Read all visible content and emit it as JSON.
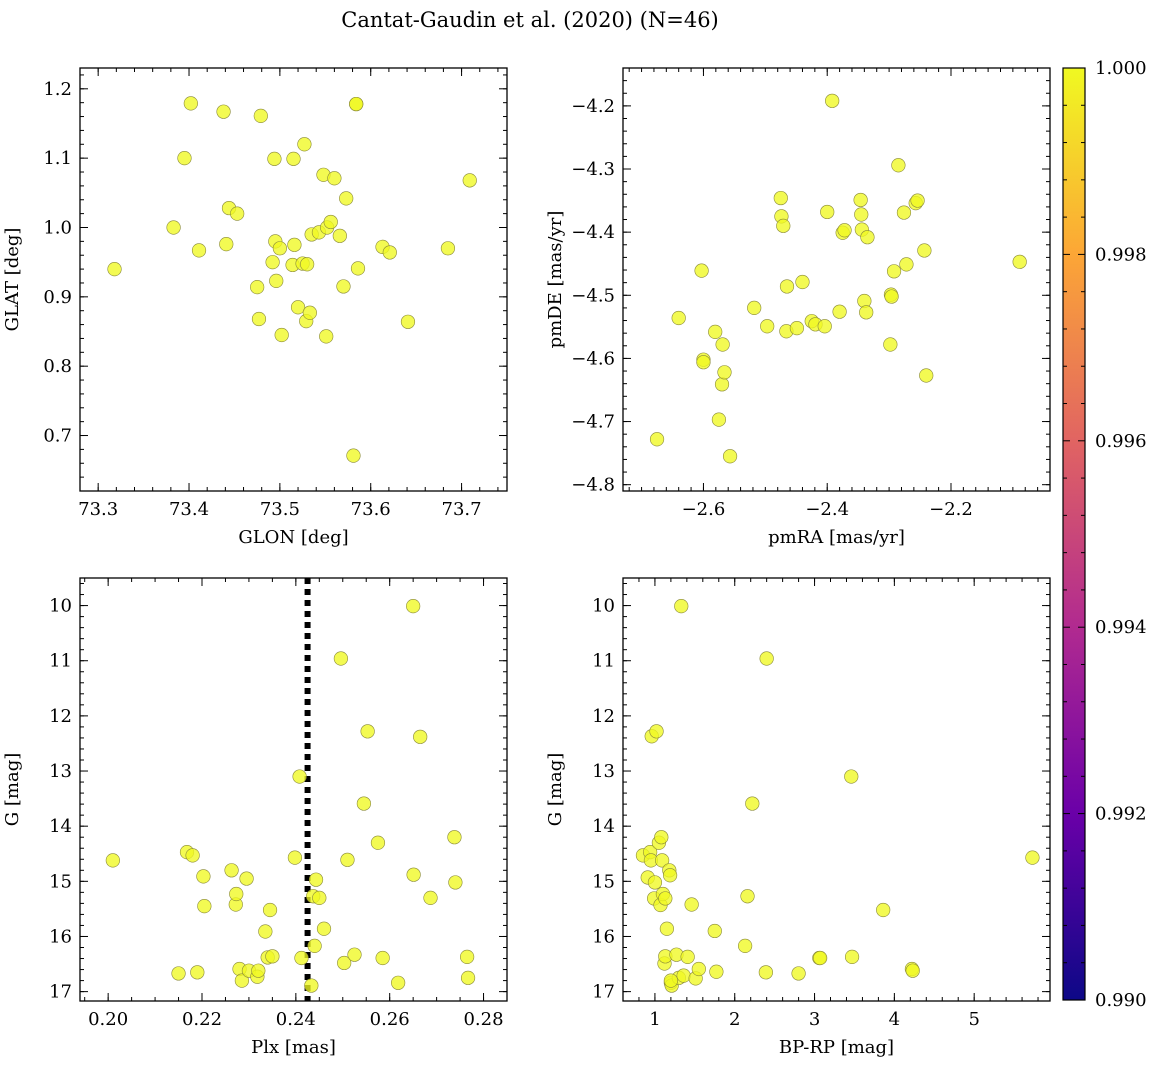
{
  "figure_title": "Cantat-Gaudin et al. (2020) (N=46)",
  "marker_color": "#f0f921",
  "colorbar": {
    "colormap": "plasma",
    "min": 0.99,
    "max": 1.0,
    "ticks": [
      "0.990",
      "0.992",
      "0.994",
      "0.996",
      "0.998",
      "1.000"
    ],
    "stops": [
      "#0d0887",
      "#6a00a8",
      "#b12a90",
      "#e16462",
      "#fca636",
      "#f0f921"
    ]
  },
  "chart_data": [
    {
      "type": "scatter",
      "title": "",
      "xlabel": "GLON [deg]",
      "ylabel": "GLAT [deg]",
      "xlim": [
        73.28,
        73.75
      ],
      "ylim": [
        0.62,
        1.23
      ],
      "y_inverted": false,
      "xticks": [
        73.3,
        73.4,
        73.5,
        73.6,
        73.7
      ],
      "xtick_labels": [
        "73.3",
        "73.4",
        "73.5",
        "73.6",
        "73.7"
      ],
      "yticks": [
        0.7,
        0.8,
        0.9,
        1.0,
        1.1,
        1.2
      ],
      "ytick_labels": [
        "0.7",
        "0.8",
        "0.9",
        "1.0",
        "1.1",
        "1.2"
      ],
      "xminor": 0.02,
      "yminor": 0.02,
      "vline": null,
      "x": [
        73.318,
        73.383,
        73.395,
        73.402,
        73.411,
        73.438,
        73.441,
        73.444,
        73.453,
        73.475,
        73.477,
        73.479,
        73.492,
        73.494,
        73.495,
        73.496,
        73.5,
        73.502,
        73.514,
        73.515,
        73.516,
        73.52,
        73.525,
        73.527,
        73.529,
        73.53,
        73.533,
        73.535,
        73.543,
        73.548,
        73.551,
        73.552,
        73.556,
        73.56,
        73.566,
        73.57,
        73.573,
        73.581,
        73.584,
        73.584,
        73.586,
        73.613,
        73.621,
        73.641,
        73.685,
        73.709
      ],
      "y": [
        0.94,
        1.0,
        1.1,
        1.179,
        0.967,
        1.167,
        0.976,
        1.028,
        1.02,
        0.914,
        0.868,
        1.161,
        0.95,
        1.099,
        0.98,
        0.923,
        0.97,
        0.845,
        0.946,
        1.099,
        0.975,
        0.885,
        0.948,
        1.12,
        0.865,
        0.947,
        0.877,
        0.99,
        0.993,
        1.076,
        0.843,
        1.0,
        1.008,
        1.071,
        0.988,
        0.915,
        1.042,
        0.671,
        1.178,
        1.178,
        0.941,
        0.972,
        0.964,
        0.864,
        0.97,
        1.068
      ]
    },
    {
      "type": "scatter",
      "title": "",
      "xlabel": "pmRA [mas/yr]",
      "ylabel": "pmDE [mas/yr]",
      "xlim": [
        -2.73,
        -2.04
      ],
      "ylim": [
        -4.81,
        -4.14
      ],
      "y_inverted": false,
      "xticks": [
        -2.6,
        -2.4,
        -2.2
      ],
      "xtick_labels": [
        "−2.6",
        "−2.4",
        "−2.2"
      ],
      "yticks": [
        -4.8,
        -4.7,
        -4.6,
        -4.5,
        -4.4,
        -4.3,
        -4.2
      ],
      "ytick_labels": [
        "−4.8",
        "−4.7",
        "−4.6",
        "−4.5",
        "−4.4",
        "−4.3",
        "−4.2"
      ],
      "xminor": 0.02,
      "yminor": 0.02,
      "vline": null,
      "x": [
        -2.675,
        -2.64,
        -2.603,
        -2.6,
        -2.6,
        -2.581,
        -2.575,
        -2.57,
        -2.569,
        -2.566,
        -2.557,
        -2.518,
        -2.497,
        -2.475,
        -2.474,
        -2.471,
        -2.466,
        -2.465,
        -2.449,
        -2.44,
        -2.425,
        -2.419,
        -2.404,
        -2.4,
        -2.392,
        -2.38,
        -2.375,
        -2.372,
        -2.346,
        -2.345,
        -2.344,
        -2.34,
        -2.337,
        -2.335,
        -2.298,
        -2.297,
        -2.296,
        -2.292,
        -2.285,
        -2.276,
        -2.272,
        -2.257,
        -2.254,
        -2.243,
        -2.24,
        -2.089
      ],
      "y": [
        -4.728,
        -4.536,
        -4.461,
        -4.602,
        -4.606,
        -4.558,
        -4.697,
        -4.641,
        -4.578,
        -4.622,
        -4.755,
        -4.52,
        -4.549,
        -4.346,
        -4.375,
        -4.39,
        -4.557,
        -4.486,
        -4.552,
        -4.479,
        -4.541,
        -4.546,
        -4.549,
        -4.368,
        -4.192,
        -4.526,
        -4.401,
        -4.397,
        -4.349,
        -4.372,
        -4.396,
        -4.509,
        -4.527,
        -4.408,
        -4.578,
        -4.499,
        -4.502,
        -4.462,
        -4.294,
        -4.369,
        -4.451,
        -4.354,
        -4.35,
        -4.429,
        -4.627,
        -4.447
      ]
    },
    {
      "type": "scatter",
      "title": "",
      "xlabel": "Plx [mas]",
      "ylabel": "G [mag]",
      "xlim": [
        0.194,
        0.285
      ],
      "ylim": [
        9.5,
        17.17
      ],
      "y_inverted": true,
      "xticks": [
        0.2,
        0.22,
        0.24,
        0.26,
        0.28
      ],
      "xtick_labels": [
        "0.20",
        "0.22",
        "0.24",
        "0.26",
        "0.28"
      ],
      "yticks": [
        10,
        11,
        12,
        13,
        14,
        15,
        16,
        17
      ],
      "ytick_labels": [
        "10",
        "11",
        "12",
        "13",
        "14",
        "15",
        "16",
        "17"
      ],
      "xminor": 0.005,
      "yminor": 0.2,
      "vline": {
        "x": 0.2425,
        "style": "dotted"
      },
      "x": [
        0.201,
        0.215,
        0.2168,
        0.218,
        0.219,
        0.2203,
        0.2205,
        0.2263,
        0.2272,
        0.2273,
        0.228,
        0.2285,
        0.2295,
        0.23,
        0.2318,
        0.232,
        0.2335,
        0.234,
        0.2345,
        0.235,
        0.2398,
        0.2408,
        0.2412,
        0.2433,
        0.2437,
        0.244,
        0.2443,
        0.245,
        0.246,
        0.2496,
        0.2503,
        0.251,
        0.2525,
        0.2545,
        0.2553,
        0.2575,
        0.2585,
        0.2618,
        0.265,
        0.2651,
        0.2665,
        0.2687,
        0.2738,
        0.274,
        0.2765,
        0.2767
      ],
      "y": [
        14.62,
        16.67,
        14.47,
        14.53,
        16.65,
        14.91,
        15.45,
        14.8,
        15.42,
        15.23,
        16.59,
        16.8,
        14.95,
        16.62,
        16.73,
        16.62,
        15.91,
        16.38,
        15.52,
        16.36,
        14.57,
        13.1,
        16.39,
        16.89,
        15.27,
        16.17,
        14.97,
        15.3,
        15.86,
        10.96,
        16.48,
        14.61,
        16.33,
        13.59,
        12.28,
        14.3,
        16.39,
        16.84,
        10.01,
        14.88,
        12.38,
        15.3,
        14.2,
        15.02,
        16.37,
        16.75
      ]
    },
    {
      "type": "scatter",
      "title": "",
      "xlabel": "BP-RP [mag]",
      "ylabel": "G [mag]",
      "xlim": [
        0.6,
        5.95
      ],
      "ylim": [
        9.5,
        17.17
      ],
      "y_inverted": true,
      "xticks": [
        1,
        2,
        3,
        4,
        5
      ],
      "xtick_labels": [
        "1",
        "2",
        "3",
        "4",
        "5"
      ],
      "xminor": 0.2,
      "yticks": [
        10,
        11,
        12,
        13,
        14,
        15,
        16,
        17
      ],
      "ytick_labels": [
        "10",
        "11",
        "12",
        "13",
        "14",
        "15",
        "16",
        "17"
      ],
      "yminor": 0.2,
      "vline": null,
      "x": [
        0.85,
        0.91,
        0.94,
        0.95,
        0.96,
        0.99,
        1.0,
        1.02,
        1.05,
        1.07,
        1.08,
        1.09,
        1.1,
        1.12,
        1.13,
        1.13,
        1.15,
        1.18,
        1.19,
        1.2,
        1.21,
        1.27,
        1.3,
        1.33,
        1.36,
        1.41,
        1.46,
        1.51,
        1.55,
        1.75,
        1.77,
        2.13,
        2.16,
        2.22,
        2.39,
        2.4,
        2.8,
        3.06,
        3.07,
        3.46,
        3.47,
        3.86,
        4.22,
        4.23,
        5.73,
        1.2
      ],
      "y": [
        14.53,
        14.93,
        14.47,
        14.62,
        12.37,
        15.31,
        15.02,
        12.28,
        14.3,
        15.43,
        14.2,
        14.62,
        15.23,
        16.49,
        15.31,
        16.36,
        15.86,
        14.8,
        14.89,
        16.84,
        16.89,
        16.33,
        16.75,
        10.01,
        16.71,
        16.37,
        15.42,
        16.76,
        16.59,
        15.9,
        16.64,
        16.17,
        15.27,
        13.59,
        16.65,
        10.96,
        16.67,
        16.39,
        16.39,
        13.1,
        16.37,
        15.52,
        16.59,
        16.62,
        14.57,
        16.8
      ]
    }
  ]
}
